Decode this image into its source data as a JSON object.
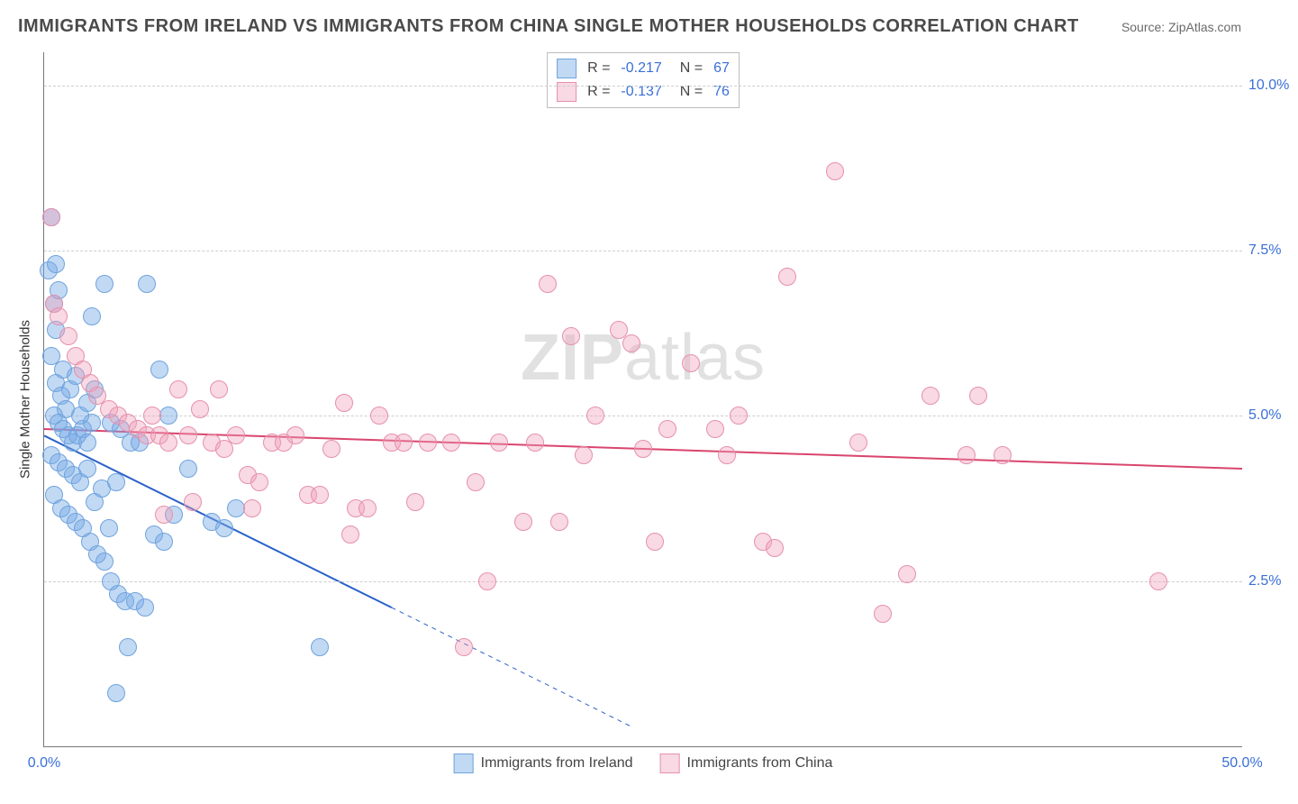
{
  "title": "IMMIGRANTS FROM IRELAND VS IMMIGRANTS FROM CHINA SINGLE MOTHER HOUSEHOLDS CORRELATION CHART",
  "source_label": "Source: ZipAtlas.com",
  "ylabel": "Single Mother Households",
  "watermark_bold": "ZIP",
  "watermark_light": "atlas",
  "chart": {
    "type": "scatter",
    "xlim": [
      0,
      50
    ],
    "ylim": [
      0,
      10.5
    ],
    "x_ticks": [
      0,
      50
    ],
    "x_tick_labels": [
      "0.0%",
      "50.0%"
    ],
    "y_ticks": [
      2.5,
      5.0,
      7.5,
      10.0
    ],
    "y_tick_labels": [
      "2.5%",
      "5.0%",
      "7.5%",
      "10.0%"
    ],
    "tick_color": "#3a6fd8",
    "grid_color": "#cfcfcf",
    "background": "#ffffff",
    "series": [
      {
        "name": "Immigrants from Ireland",
        "color_fill": "rgba(120,170,230,0.45)",
        "color_stroke": "#6fa3dd",
        "stats": {
          "R": "-0.217",
          "N": "67"
        },
        "marker_radius": 10,
        "trend": {
          "x1": 0,
          "y1": 4.7,
          "x2": 14.5,
          "y2": 2.1,
          "color": "#2b62c9",
          "width": 2,
          "dash_extend_x": 24.5,
          "dash_extend_y": 0.3
        },
        "points": [
          [
            0.2,
            7.2
          ],
          [
            0.3,
            8.0
          ],
          [
            0.4,
            6.7
          ],
          [
            0.5,
            6.3
          ],
          [
            0.6,
            6.9
          ],
          [
            0.8,
            5.7
          ],
          [
            0.3,
            5.9
          ],
          [
            0.5,
            5.5
          ],
          [
            0.7,
            5.3
          ],
          [
            0.9,
            5.1
          ],
          [
            1.1,
            5.4
          ],
          [
            1.3,
            5.6
          ],
          [
            0.4,
            5.0
          ],
          [
            0.6,
            4.9
          ],
          [
            0.8,
            4.8
          ],
          [
            1.0,
            4.7
          ],
          [
            1.2,
            4.6
          ],
          [
            1.4,
            4.7
          ],
          [
            1.6,
            4.8
          ],
          [
            1.8,
            4.6
          ],
          [
            2.0,
            4.9
          ],
          [
            2.5,
            7.0
          ],
          [
            2.8,
            4.9
          ],
          [
            3.2,
            4.8
          ],
          [
            3.6,
            4.6
          ],
          [
            4.0,
            4.6
          ],
          [
            4.3,
            7.0
          ],
          [
            4.8,
            5.7
          ],
          [
            5.2,
            5.0
          ],
          [
            0.3,
            4.4
          ],
          [
            0.6,
            4.3
          ],
          [
            0.9,
            4.2
          ],
          [
            1.2,
            4.1
          ],
          [
            1.5,
            4.0
          ],
          [
            1.8,
            4.2
          ],
          [
            2.1,
            3.7
          ],
          [
            2.4,
            3.9
          ],
          [
            2.7,
            3.3
          ],
          [
            3.0,
            4.0
          ],
          [
            0.4,
            3.8
          ],
          [
            0.7,
            3.6
          ],
          [
            1.0,
            3.5
          ],
          [
            1.3,
            3.4
          ],
          [
            1.6,
            3.3
          ],
          [
            1.9,
            3.1
          ],
          [
            2.2,
            2.9
          ],
          [
            2.5,
            2.8
          ],
          [
            2.8,
            2.5
          ],
          [
            3.1,
            2.3
          ],
          [
            3.4,
            2.2
          ],
          [
            3.8,
            2.2
          ],
          [
            4.2,
            2.1
          ],
          [
            4.6,
            3.2
          ],
          [
            5.0,
            3.1
          ],
          [
            5.4,
            3.5
          ],
          [
            6.0,
            4.2
          ],
          [
            7.0,
            3.4
          ],
          [
            7.5,
            3.3
          ],
          [
            8.0,
            3.6
          ],
          [
            1.5,
            5.0
          ],
          [
            1.8,
            5.2
          ],
          [
            2.1,
            5.4
          ],
          [
            3.5,
            1.5
          ],
          [
            11.5,
            1.5
          ],
          [
            3.0,
            0.8
          ],
          [
            2.0,
            6.5
          ],
          [
            0.5,
            7.3
          ]
        ]
      },
      {
        "name": "Immigrants from China",
        "color_fill": "rgba(240,160,185,0.40)",
        "color_stroke": "#e690ac",
        "stats": {
          "R": "-0.137",
          "N": "76"
        },
        "marker_radius": 10,
        "trend": {
          "x1": 0,
          "y1": 4.8,
          "x2": 50,
          "y2": 4.2,
          "color": "#d9456d",
          "width": 2
        },
        "points": [
          [
            0.3,
            8.0
          ],
          [
            0.4,
            6.7
          ],
          [
            0.6,
            6.5
          ],
          [
            1.0,
            6.2
          ],
          [
            1.3,
            5.9
          ],
          [
            1.6,
            5.7
          ],
          [
            1.9,
            5.5
          ],
          [
            2.2,
            5.3
          ],
          [
            2.7,
            5.1
          ],
          [
            3.1,
            5.0
          ],
          [
            3.5,
            4.9
          ],
          [
            3.9,
            4.8
          ],
          [
            4.3,
            4.7
          ],
          [
            4.8,
            4.7
          ],
          [
            5.2,
            4.6
          ],
          [
            5.6,
            5.4
          ],
          [
            6.0,
            4.7
          ],
          [
            6.5,
            5.1
          ],
          [
            7.0,
            4.6
          ],
          [
            7.5,
            4.5
          ],
          [
            8.0,
            4.7
          ],
          [
            8.5,
            4.1
          ],
          [
            9.0,
            4.0
          ],
          [
            9.5,
            4.6
          ],
          [
            10.0,
            4.6
          ],
          [
            10.5,
            4.7
          ],
          [
            11.0,
            3.8
          ],
          [
            11.5,
            3.8
          ],
          [
            12.0,
            4.5
          ],
          [
            12.5,
            5.2
          ],
          [
            13.0,
            3.6
          ],
          [
            13.5,
            3.6
          ],
          [
            14.0,
            5.0
          ],
          [
            14.5,
            4.6
          ],
          [
            15.0,
            4.6
          ],
          [
            15.5,
            3.7
          ],
          [
            16.0,
            4.6
          ],
          [
            17.0,
            4.6
          ],
          [
            18.0,
            4.0
          ],
          [
            18.5,
            2.5
          ],
          [
            19.0,
            4.6
          ],
          [
            20.0,
            3.4
          ],
          [
            20.5,
            4.6
          ],
          [
            21.0,
            7.0
          ],
          [
            21.5,
            3.4
          ],
          [
            22.0,
            6.2
          ],
          [
            22.5,
            4.4
          ],
          [
            23.0,
            5.0
          ],
          [
            24.0,
            6.3
          ],
          [
            24.5,
            6.1
          ],
          [
            25.0,
            4.5
          ],
          [
            25.5,
            3.1
          ],
          [
            26.0,
            4.8
          ],
          [
            27.0,
            5.8
          ],
          [
            28.0,
            4.8
          ],
          [
            28.5,
            4.4
          ],
          [
            29.0,
            5.0
          ],
          [
            30.0,
            3.1
          ],
          [
            30.5,
            3.0
          ],
          [
            31.0,
            7.1
          ],
          [
            33.0,
            8.7
          ],
          [
            34.0,
            4.6
          ],
          [
            35.0,
            2.0
          ],
          [
            36.0,
            2.6
          ],
          [
            37.0,
            5.3
          ],
          [
            38.5,
            4.4
          ],
          [
            39.0,
            5.3
          ],
          [
            40.0,
            4.4
          ],
          [
            46.5,
            2.5
          ],
          [
            17.5,
            1.5
          ],
          [
            4.5,
            5.0
          ],
          [
            5.0,
            3.5
          ],
          [
            6.2,
            3.7
          ],
          [
            7.3,
            5.4
          ],
          [
            8.7,
            3.6
          ],
          [
            12.8,
            3.2
          ]
        ]
      }
    ]
  },
  "legend_bottom": [
    {
      "label": "Immigrants from Ireland",
      "fill": "rgba(120,170,230,0.45)",
      "stroke": "#6fa3dd"
    },
    {
      "label": "Immigrants from China",
      "fill": "rgba(240,160,185,0.40)",
      "stroke": "#e690ac"
    }
  ],
  "stats_box": {
    "value_color": "#3a6fd8",
    "rows": [
      {
        "fill": "rgba(120,170,230,0.45)",
        "stroke": "#6fa3dd",
        "R_label": "R =",
        "R": "-0.217",
        "N_label": "N =",
        "N": "67"
      },
      {
        "fill": "rgba(240,160,185,0.40)",
        "stroke": "#e690ac",
        "R_label": "R =",
        "R": "-0.137",
        "N_label": "N =",
        "N": "76"
      }
    ]
  }
}
